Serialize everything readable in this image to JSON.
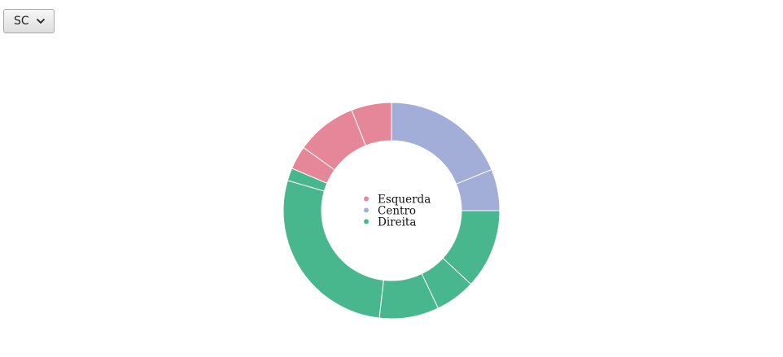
{
  "selector": {
    "selected": "SC",
    "icon": "chevron-down-icon"
  },
  "chart_data": {
    "type": "pie",
    "variant": "donut",
    "legend_position": "center",
    "legend": [
      {
        "label": "Esquerda",
        "color": "#e68799"
      },
      {
        "label": "Centro",
        "color": "#a2aed8"
      },
      {
        "label": "Direita",
        "color": "#48b78e"
      }
    ],
    "slices": [
      {
        "group": "Centro",
        "value": 18.8
      },
      {
        "group": "Centro",
        "value": 6.2
      },
      {
        "group": "Direita",
        "value": 11.9
      },
      {
        "group": "Direita",
        "value": 6.0
      },
      {
        "group": "Direita",
        "value": 8.9
      },
      {
        "group": "Direita",
        "value": 27.7
      },
      {
        "group": "Direita",
        "value": 1.9
      },
      {
        "group": "Esquerda",
        "value": 3.5
      },
      {
        "group": "Esquerda",
        "value": 9.1
      },
      {
        "group": "Esquerda",
        "value": 6.0
      }
    ]
  }
}
